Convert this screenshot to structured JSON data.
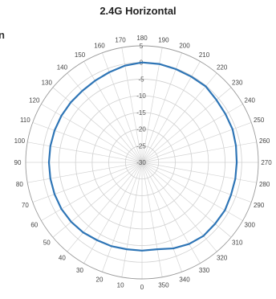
{
  "cutoff_text": "n",
  "chart_data": {
    "type": "polar-line",
    "title": "2.4G Horizontal",
    "angle_ticks": [
      0,
      10,
      20,
      30,
      40,
      50,
      60,
      70,
      80,
      90,
      100,
      110,
      120,
      130,
      140,
      150,
      160,
      170,
      180,
      190,
      200,
      210,
      220,
      230,
      240,
      250,
      260,
      270,
      280,
      290,
      300,
      310,
      320,
      330,
      340,
      350
    ],
    "angle_labels": [
      "0",
      "10",
      "20",
      "30",
      "40",
      "50",
      "60",
      "70",
      "80",
      "90",
      "100",
      "110",
      "120",
      "130",
      "140",
      "150",
      "160",
      "170",
      "180",
      "190",
      "200",
      "210",
      "220",
      "230",
      "240",
      "250",
      "260",
      "270",
      "280",
      "290",
      "300",
      "310",
      "320",
      "330",
      "340",
      "350"
    ],
    "radial_ticks": [
      5,
      0,
      -5,
      -10,
      -15,
      -20,
      -25,
      -30
    ],
    "radial_labels": [
      "5",
      "0",
      "-5",
      "-10",
      "-15",
      "-20",
      "-25",
      "-30"
    ],
    "radial_range": [
      -30,
      5
    ],
    "angle_zero_position": "bottom",
    "angle_direction": "clockwise",
    "grid": true,
    "series_color": "#2E75B6",
    "series": [
      {
        "angles": [
          0,
          10,
          20,
          30,
          40,
          50,
          60,
          70,
          80,
          90,
          100,
          110,
          120,
          130,
          140,
          150,
          160,
          170,
          180,
          190,
          200,
          210,
          220,
          230,
          240,
          250,
          260,
          270,
          280,
          290,
          300,
          310,
          320,
          330,
          340,
          350
        ],
        "values": [
          -3.5,
          -3.5,
          -3.2,
          -3,
          -2.5,
          -2.2,
          -2,
          -2,
          -2,
          -2,
          -2,
          -2,
          -2,
          -2,
          -2,
          -1.7,
          -1.2,
          -0.5,
          0,
          0,
          -0.2,
          -0.3,
          -0.2,
          -0.8,
          -1,
          -1,
          -1.3,
          -1.5,
          -1.5,
          -1.5,
          -1.2,
          -1.3,
          -1.2,
          -1.7,
          -2.5,
          -3.5
        ]
      }
    ]
  }
}
